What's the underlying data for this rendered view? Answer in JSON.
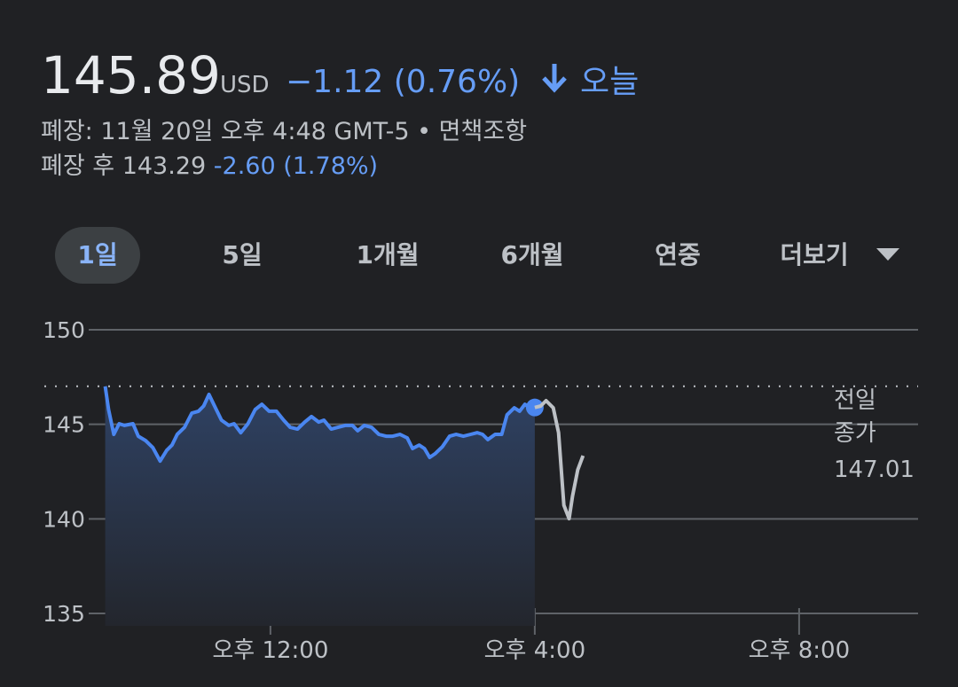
{
  "header": {
    "price": "145.89",
    "currency": "USD",
    "change": "−1.12 (0.76%)",
    "period": "오늘",
    "status": "폐장: 11월 20일 오후 4:48 GMT-5",
    "separator": "•",
    "disclaimer": "면책조항",
    "after_hours_label": "폐장 후",
    "after_hours_price": "143.29",
    "after_hours_change": "-2.60 (1.78%)"
  },
  "tabs": [
    {
      "label": "1일",
      "selected": true
    },
    {
      "label": "5일",
      "selected": false
    },
    {
      "label": "1개월",
      "selected": false
    },
    {
      "label": "6개월",
      "selected": false
    },
    {
      "label": "연중",
      "selected": false
    },
    {
      "label": "더보기",
      "selected": false
    }
  ],
  "chart_data": {
    "type": "line",
    "xlim": [
      9.25,
      21.8
    ],
    "xticks": [
      {
        "value": 12,
        "label": "오후 12:00"
      },
      {
        "value": 16,
        "label": "오후 4:00"
      },
      {
        "value": 20,
        "label": "오후 8:00"
      }
    ],
    "ylim": [
      135,
      150
    ],
    "yticks": [
      135,
      140,
      145,
      150
    ],
    "grid": true,
    "previous_close": {
      "label": "전일 종가",
      "value": 147.01
    },
    "series": [
      {
        "color": "#4a86f0",
        "fill_area": true,
        "x": [
          9.5,
          9.55,
          9.63,
          9.71,
          9.79,
          9.92,
          10.0,
          10.11,
          10.22,
          10.33,
          10.43,
          10.51,
          10.59,
          10.7,
          10.81,
          10.91,
          10.99,
          11.07,
          11.18,
          11.26,
          11.37,
          11.45,
          11.55,
          11.66,
          11.77,
          11.87,
          11.98,
          12.09,
          12.2,
          12.3,
          12.41,
          12.52,
          12.62,
          12.73,
          12.81,
          12.92,
          13.02,
          13.13,
          13.24,
          13.32,
          13.42,
          13.53,
          13.64,
          13.75,
          13.85,
          13.96,
          14.07,
          14.15,
          14.25,
          14.33,
          14.41,
          14.49,
          14.6,
          14.71,
          14.81,
          14.92,
          15.03,
          15.13,
          15.21,
          15.29,
          15.4,
          15.5,
          15.58,
          15.69,
          15.77,
          15.85,
          15.93,
          16.0
        ],
        "values": [
          147.01,
          145.78,
          144.47,
          145.03,
          144.94,
          145.03,
          144.37,
          144.14,
          143.77,
          143.06,
          143.62,
          143.9,
          144.47,
          144.84,
          145.59,
          145.69,
          145.97,
          146.58,
          145.78,
          145.22,
          144.94,
          145.03,
          144.56,
          145.03,
          145.78,
          146.06,
          145.69,
          145.69,
          145.22,
          144.84,
          144.75,
          145.12,
          145.41,
          145.12,
          145.22,
          144.75,
          144.84,
          144.94,
          144.94,
          144.66,
          144.94,
          144.84,
          144.47,
          144.37,
          144.37,
          144.47,
          144.28,
          143.72,
          143.9,
          143.72,
          143.25,
          143.44,
          143.81,
          144.37,
          144.47,
          144.37,
          144.47,
          144.56,
          144.47,
          144.19,
          144.47,
          144.47,
          145.5,
          145.87,
          145.69,
          146.06,
          145.87,
          145.89
        ]
      },
      {
        "color": "#bdc1c6",
        "fill_area": false,
        "x": [
          16.0,
          16.09,
          16.17,
          16.28,
          16.36,
          16.44,
          16.52,
          16.57,
          16.65,
          16.73
        ],
        "values": [
          145.89,
          145.97,
          146.25,
          145.87,
          144.56,
          140.72,
          140.01,
          141.19,
          142.59,
          143.34
        ]
      }
    ]
  }
}
